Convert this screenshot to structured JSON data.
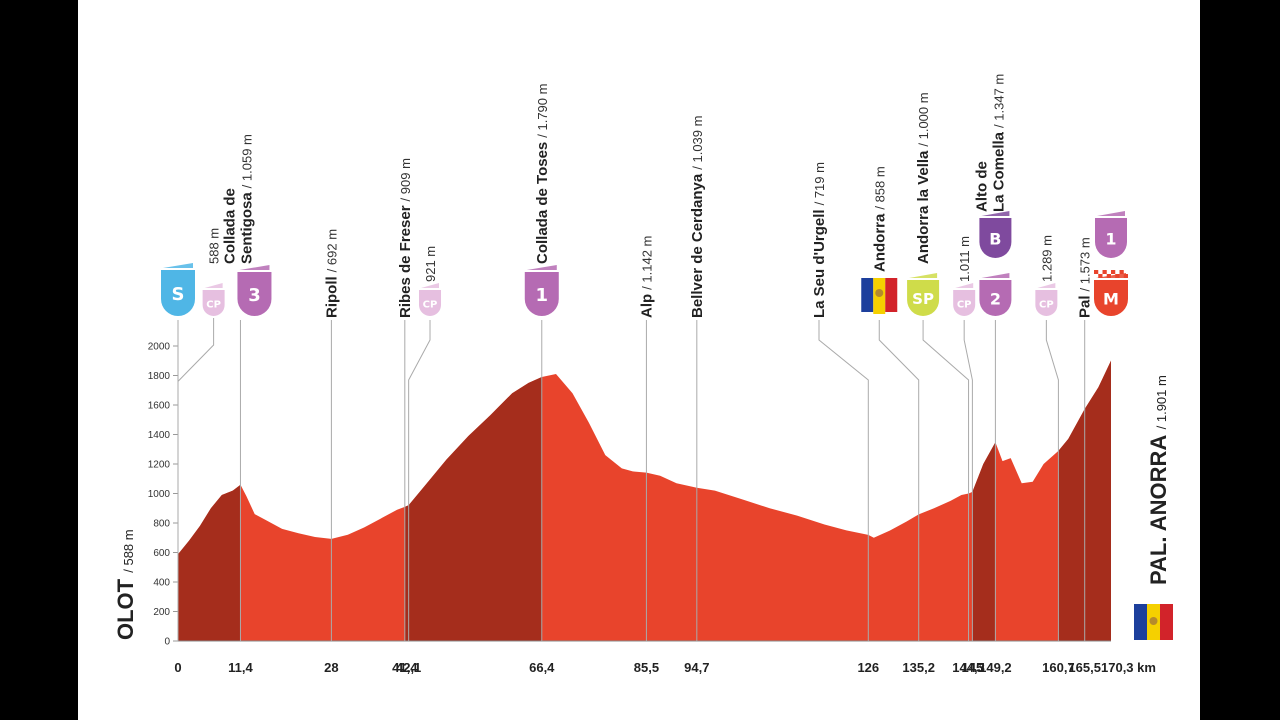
{
  "colors": {
    "fill_light": "#e8442c",
    "fill_dark": "#a52d1c",
    "cat3": "#b56bb3",
    "cat2": "#b56bb3",
    "cat1": "#b56bb3",
    "cpColor": "#e6bfe0",
    "start": "#4fb6e6",
    "sprint": "#cfdc4a",
    "bonus": "#7f4a9e",
    "finish": "#e8442c"
  },
  "chart_data": {
    "type": "area",
    "xlabel": "km",
    "ylim": [
      0,
      2000
    ],
    "yticks": [
      0,
      200,
      400,
      600,
      800,
      1000,
      1200,
      1400,
      1600,
      1800,
      2000
    ],
    "start_label": "OLOT",
    "start_alt": "/ 588 m",
    "finish_label": "PAL. ANORRA",
    "finish_alt": "/ 1.901 m",
    "km_ticks": [
      "0",
      "11,4",
      "28",
      "41,4",
      "42,1",
      "66,4",
      "85,5",
      "94,7",
      "126",
      "135,2",
      "144,3",
      "145",
      "149,2",
      "160,7",
      "165,5",
      "170,3 km"
    ],
    "km_values": [
      0,
      11.4,
      28,
      41.4,
      42.1,
      66.4,
      85.5,
      94.7,
      126,
      135.2,
      144.3,
      145,
      149.2,
      160.7,
      165.5,
      170.3
    ],
    "profile": [
      [
        0,
        588
      ],
      [
        2,
        680
      ],
      [
        4,
        780
      ],
      [
        6,
        900
      ],
      [
        8,
        990
      ],
      [
        10,
        1020
      ],
      [
        11.4,
        1059
      ],
      [
        12.5,
        980
      ],
      [
        14,
        860
      ],
      [
        16,
        820
      ],
      [
        19,
        760
      ],
      [
        22,
        730
      ],
      [
        25,
        705
      ],
      [
        28,
        692
      ],
      [
        31,
        720
      ],
      [
        34,
        770
      ],
      [
        37,
        830
      ],
      [
        40,
        890
      ],
      [
        41.4,
        909
      ],
      [
        42.1,
        921
      ],
      [
        45,
        1050
      ],
      [
        49,
        1230
      ],
      [
        53,
        1390
      ],
      [
        57,
        1530
      ],
      [
        61,
        1680
      ],
      [
        64,
        1750
      ],
      [
        66.4,
        1790
      ],
      [
        69,
        1810
      ],
      [
        72,
        1680
      ],
      [
        75,
        1480
      ],
      [
        78,
        1260
      ],
      [
        81,
        1170
      ],
      [
        83,
        1150
      ],
      [
        85.5,
        1142
      ],
      [
        88,
        1120
      ],
      [
        91,
        1070
      ],
      [
        94.7,
        1039
      ],
      [
        98,
        1020
      ],
      [
        103,
        960
      ],
      [
        108,
        900
      ],
      [
        113,
        850
      ],
      [
        118,
        790
      ],
      [
        122,
        750
      ],
      [
        126,
        719
      ],
      [
        127,
        700
      ],
      [
        130,
        750
      ],
      [
        133,
        810
      ],
      [
        135.2,
        858
      ],
      [
        138,
        900
      ],
      [
        141,
        950
      ],
      [
        143,
        990
      ],
      [
        144.3,
        1000
      ],
      [
        145,
        1011
      ],
      [
        147,
        1200
      ],
      [
        149.2,
        1347
      ],
      [
        150.5,
        1220
      ],
      [
        152,
        1240
      ],
      [
        154,
        1070
      ],
      [
        156,
        1080
      ],
      [
        158,
        1200
      ],
      [
        160.7,
        1289
      ],
      [
        162.5,
        1370
      ],
      [
        165.5,
        1573
      ],
      [
        168,
        1720
      ],
      [
        170.3,
        1901
      ]
    ],
    "shade_bands": [
      [
        0,
        11.4
      ],
      [
        41.4,
        66.4
      ],
      [
        145,
        149.2
      ],
      [
        160.7,
        165.5
      ],
      [
        165.5,
        170.3
      ]
    ],
    "points": [
      {
        "km": 0,
        "alt": 588,
        "name": "",
        "altText": "588 m",
        "badge": "S",
        "badgeType": "start",
        "extra": "CP",
        "extraKm": 6.5
      },
      {
        "km": 11.4,
        "alt": 1059,
        "name": "Collada de\nSentigosa",
        "altText": "/ 1.059 m",
        "badge": "3",
        "badgeType": "cat3"
      },
      {
        "km": 28,
        "alt": 692,
        "name": "Ripoll",
        "altText": "/ 692 m"
      },
      {
        "km": 41.4,
        "alt": 909,
        "name": "Ribes de Freser",
        "altText": "/ 909 m"
      },
      {
        "km": 42.1,
        "alt": 921,
        "name": "",
        "altText": "921 m",
        "badge": "CP",
        "badgeType": "cp",
        "labelKm": 46
      },
      {
        "km": 66.4,
        "alt": 1790,
        "name": "Collada de Toses",
        "altText": "/ 1.790 m",
        "badge": "1",
        "badgeType": "cat1"
      },
      {
        "km": 85.5,
        "alt": 1142,
        "name": "Alp",
        "altText": "/ 1.142 m"
      },
      {
        "km": 94.7,
        "alt": 1039,
        "name": "Bellver de Cerdanya",
        "altText": "/ 1.039 m"
      },
      {
        "km": 126,
        "alt": 719,
        "name": "La Seu d'Urgell",
        "altText": "/ 719 m",
        "labelKm": 117
      },
      {
        "km": 135.2,
        "alt": 858,
        "name": "Andorra",
        "altText": "/ 858 m",
        "badge": "flag",
        "badgeType": "flag",
        "labelKm": 128
      },
      {
        "km": 144.3,
        "alt": 1000,
        "name": "Andorra la Vella",
        "altText": "/ 1.000 m",
        "badge": "SP",
        "badgeType": "sprint",
        "labelKm": 136
      },
      {
        "km": 145,
        "alt": 1011,
        "name": "",
        "altText": "1.011 m",
        "badge": "CP",
        "badgeType": "cp",
        "labelKm": 143.5
      },
      {
        "km": 149.2,
        "alt": 1347,
        "name": "Alto de\nLa Comella",
        "altText": "/ 1.347 m",
        "badge": "2",
        "badgeType": "cat2",
        "bonus": "B"
      },
      {
        "km": 160.7,
        "alt": 1289,
        "name": "",
        "altText": "1.289 m",
        "badge": "CP",
        "badgeType": "cp",
        "labelKm": 158.5
      },
      {
        "km": 165.5,
        "alt": 1573,
        "name": "Pal",
        "altText": "/ 1.573 m"
      },
      {
        "km": 170.3,
        "alt": 1901,
        "name": "",
        "altText": "",
        "badge": "M",
        "badgeType": "finish",
        "topBadge": "1"
      }
    ]
  }
}
